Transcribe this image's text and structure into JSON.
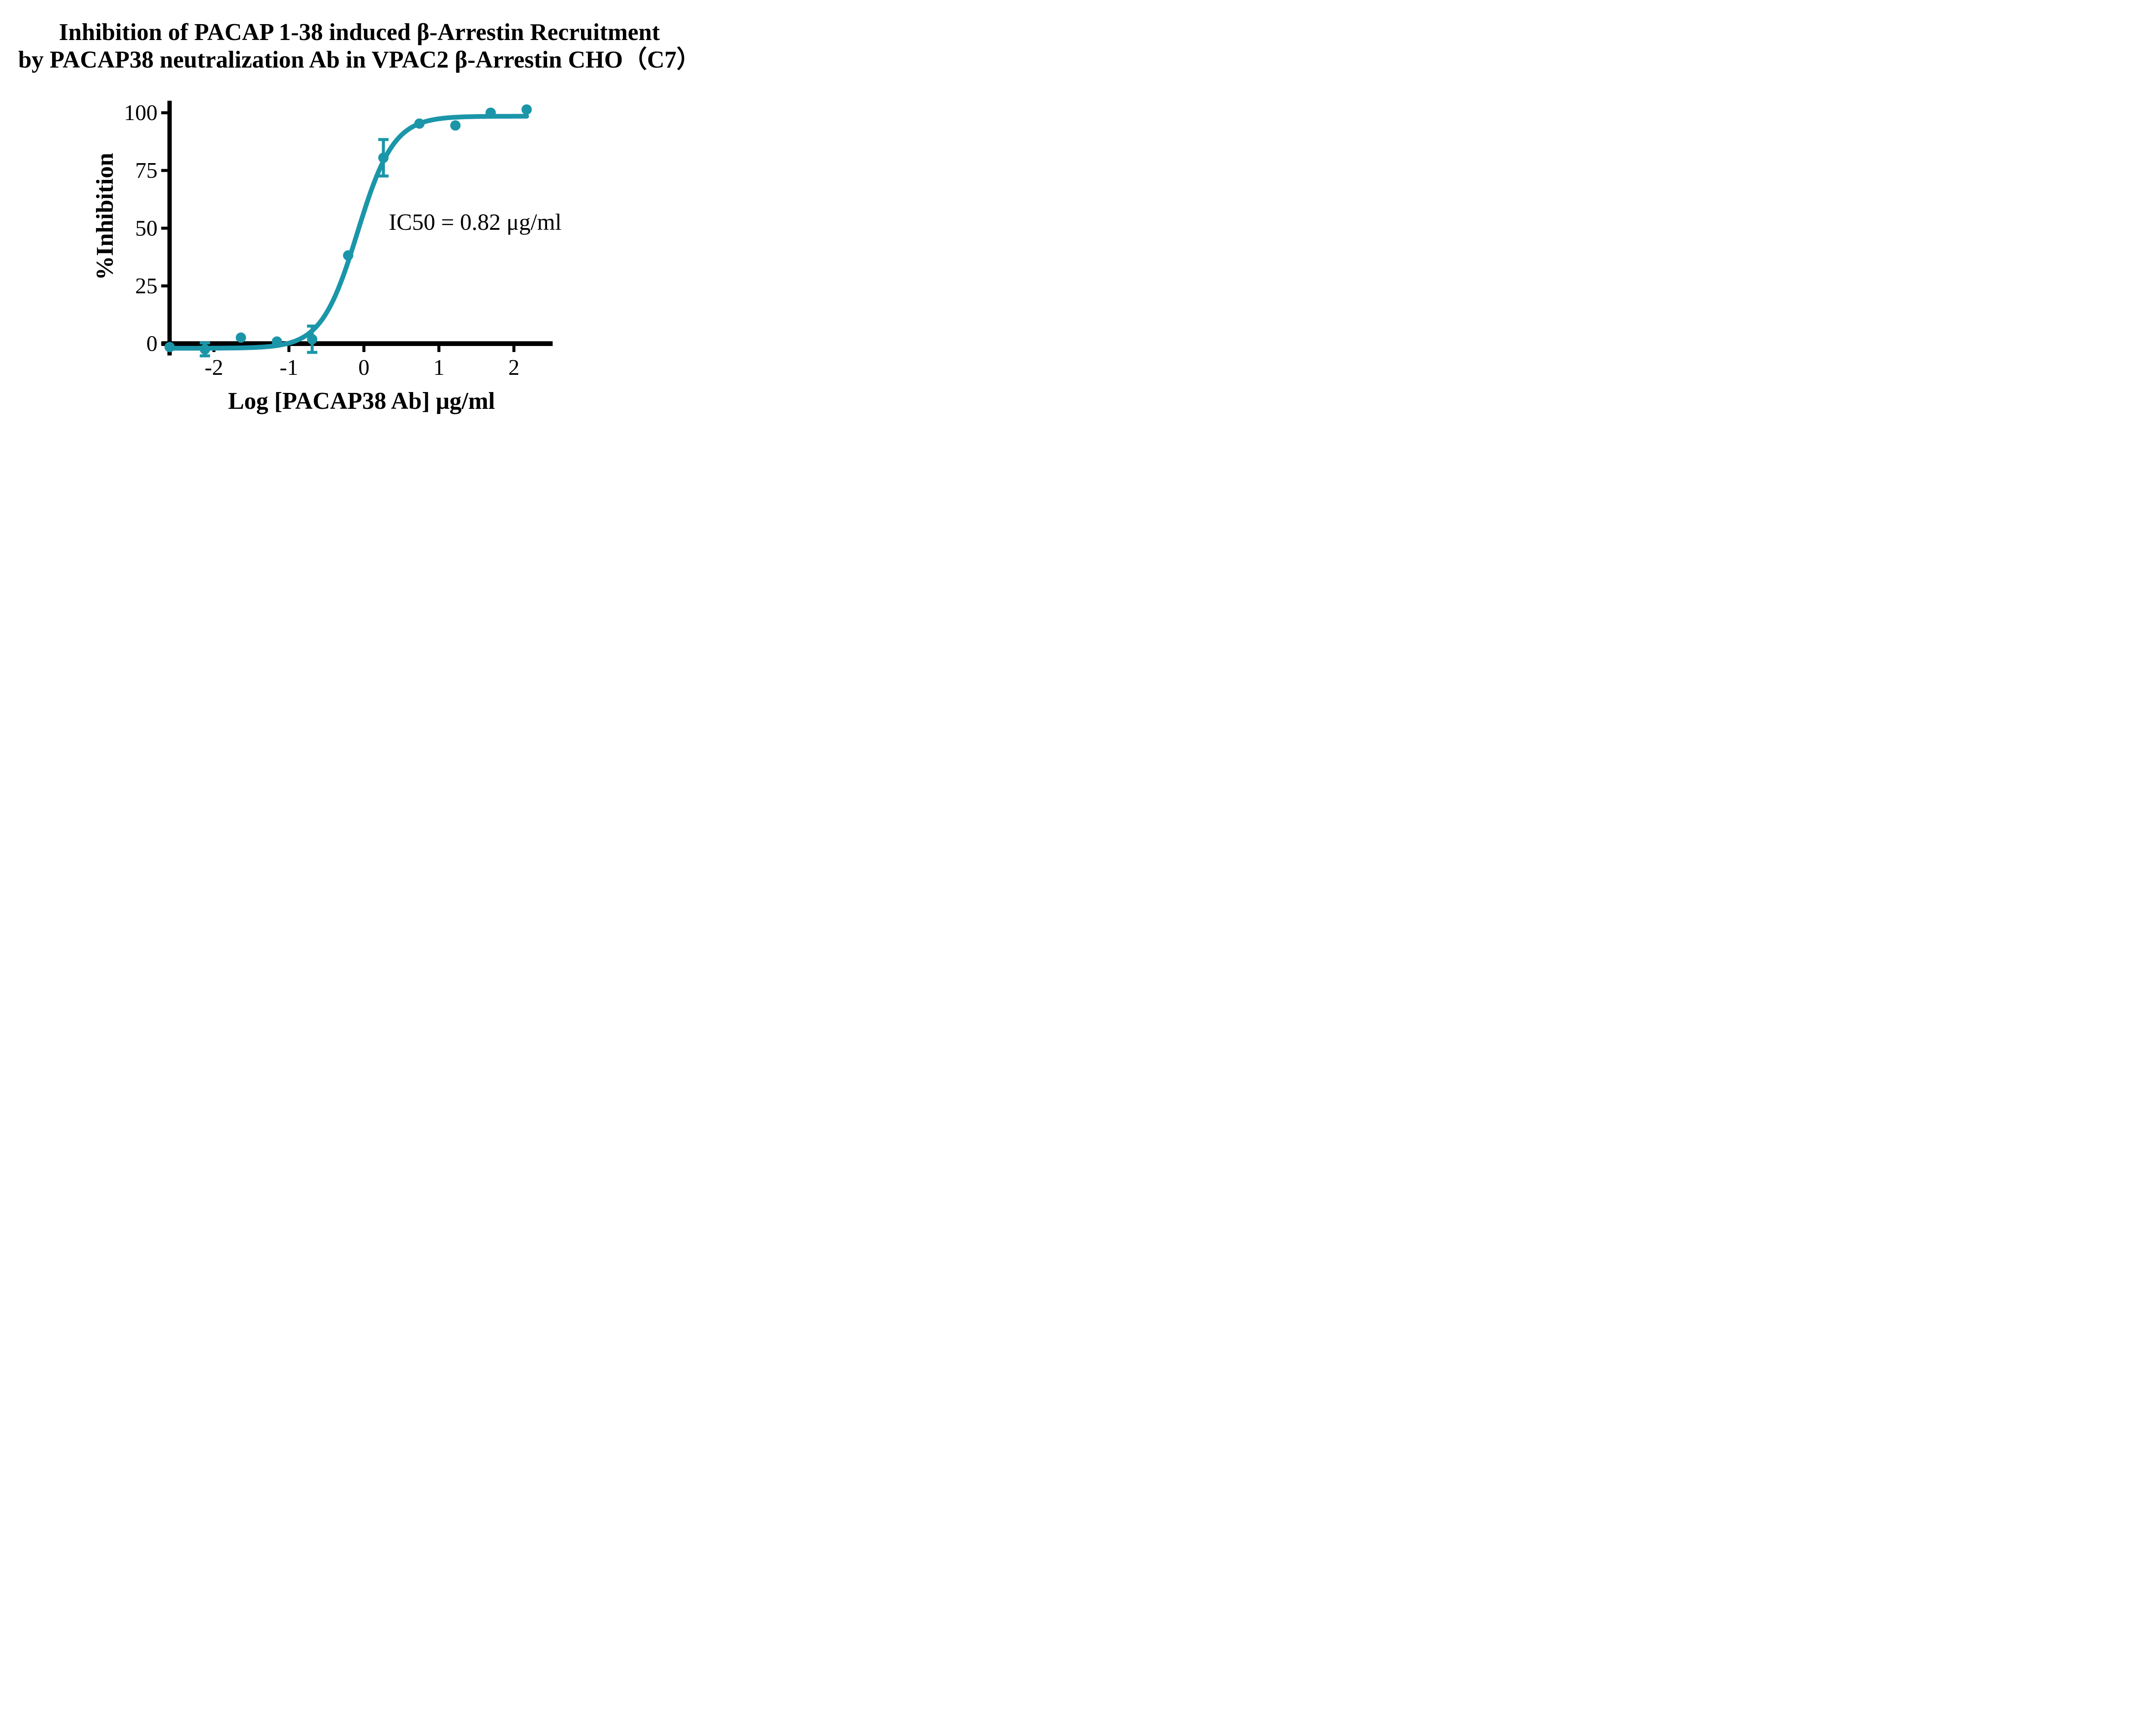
{
  "title": {
    "line1": "Inhibition of PACAP 1-38 induced β-Arrestin Recruitment",
    "line2": "by PACAP38 neutralization Ab in VPAC2 β-Arrestin CHO（C7）"
  },
  "annotation": {
    "ic50_label": "IC50 = 0.82 μg/ml"
  },
  "colors": {
    "series": "#1B96A9",
    "axis": "#000000",
    "background": "#FFFFFF"
  },
  "chart_data": {
    "type": "scatter",
    "title": "Inhibition of PACAP 1-38 induced β-Arrestin Recruitment by PACAP38 neutralization Ab in VPAC2 β-Arrestin CHO（C7）",
    "xlabel": "Log [PACAP38 Ab] μg/ml",
    "ylabel": "%Inhibition",
    "x_ticks": [
      -2,
      -1,
      0,
      1,
      2
    ],
    "y_ticks": [
      0,
      25,
      50,
      75,
      100
    ],
    "x_axis_span": [
      -2.7,
      2.52
    ],
    "y_axis_span": [
      -5,
      105
    ],
    "grid": false,
    "legend": "none",
    "series_color": "#1B96A9",
    "points": [
      {
        "x": -2.59,
        "y": -1.5,
        "err": null
      },
      {
        "x": -2.12,
        "y": -2.5,
        "err": 2.8
      },
      {
        "x": -1.64,
        "y": 2.6,
        "err": null
      },
      {
        "x": -1.16,
        "y": 0.9,
        "err": null
      },
      {
        "x": -0.69,
        "y": 1.9,
        "err": 5.7
      },
      {
        "x": -0.21,
        "y": 38.2,
        "err": null
      },
      {
        "x": 0.26,
        "y": 80.5,
        "err": 7.9
      },
      {
        "x": 0.74,
        "y": 95.3,
        "err": null
      },
      {
        "x": 1.22,
        "y": 94.5,
        "err": null
      },
      {
        "x": 1.69,
        "y": 100.0,
        "err": null
      },
      {
        "x": 2.17,
        "y": 101.4,
        "err": null
      }
    ],
    "fit_curve": {
      "model": "4PL-sigmoid",
      "bottom": -2,
      "top": 98.5,
      "log_ic50": -0.085,
      "hill_slope": 1.8,
      "x_start": -2.59,
      "x_end": 2.17
    },
    "ic50_text": "IC50 = 0.82 μg/ml",
    "ic50_value_ug_ml": 0.82
  }
}
